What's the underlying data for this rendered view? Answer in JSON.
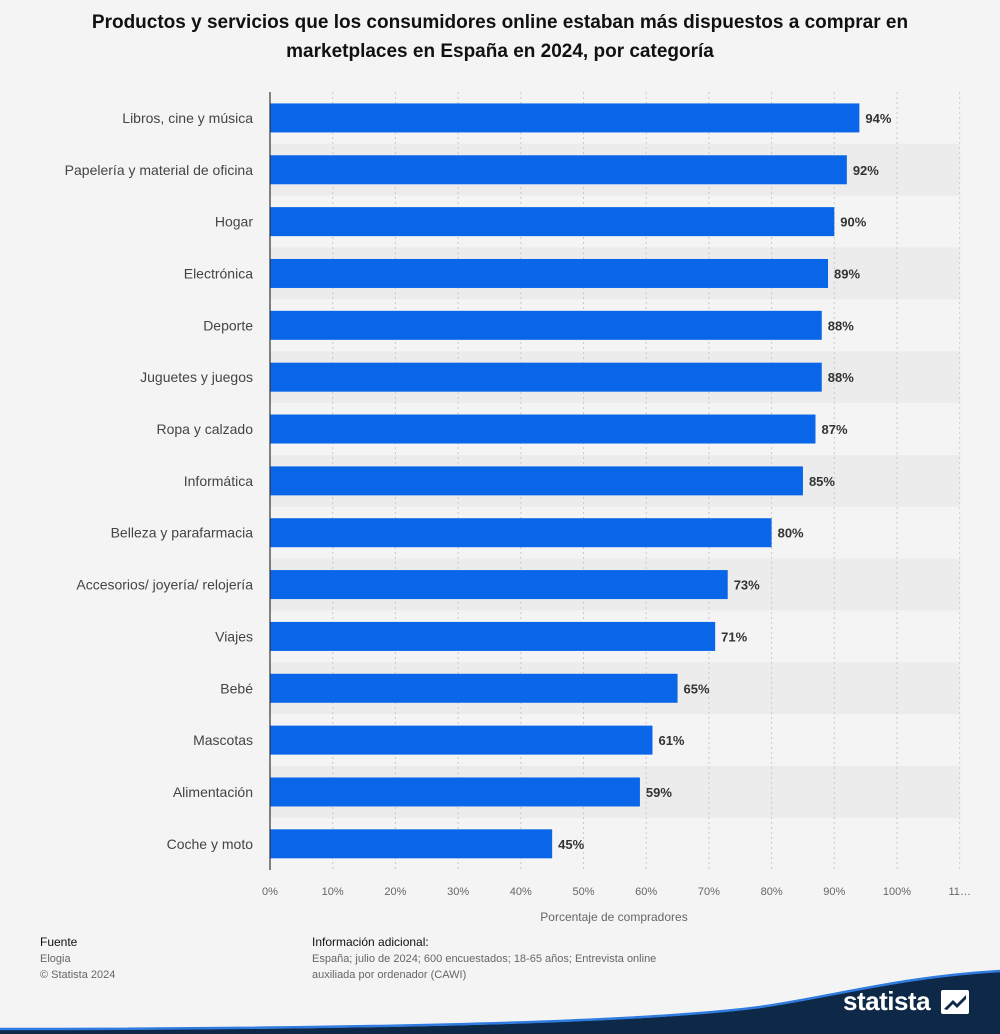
{
  "chart_data": {
    "type": "bar",
    "orientation": "horizontal",
    "title": "Productos y servicios que los consumidores online estaban más dispuestos a comprar en marketplaces en España en 2024, por categoría",
    "categories": [
      "Libros, cine y música",
      "Papelería y material de oficina",
      "Hogar",
      "Electrónica",
      "Deporte",
      "Juguetes y juegos",
      "Ropa y calzado",
      "Informática",
      "Belleza y parafarmacia",
      "Accesorios/ joyería/ relojería",
      "Viajes",
      "Bebé",
      "Mascotas",
      "Alimentación",
      "Coche y moto"
    ],
    "values": [
      94,
      92,
      90,
      89,
      88,
      88,
      87,
      85,
      80,
      73,
      71,
      65,
      61,
      59,
      45
    ],
    "value_suffix": "%",
    "xlabel": "Porcentaje de compradores",
    "ylabel": "",
    "xlim": [
      0,
      110
    ],
    "x_ticks": [
      "0%",
      "10%",
      "20%",
      "30%",
      "40%",
      "50%",
      "60%",
      "70%",
      "80%",
      "90%",
      "100%",
      "11…"
    ],
    "grid": true,
    "legend": "none",
    "bar_color": "#0a66e8"
  },
  "footer": {
    "source_heading": "Fuente",
    "source_name": "Elogia",
    "copyright": "© Statista 2024",
    "info_heading": "Información adicional:",
    "info_line1": "España; julio de 2024; 600 encuestados; 18-65 años; Entrevista online",
    "info_line2": "auxiliada por ordenador (CAWI)"
  },
  "brand": {
    "name": "statista",
    "icon": "statista-logo-icon",
    "color": "#0e2847"
  }
}
